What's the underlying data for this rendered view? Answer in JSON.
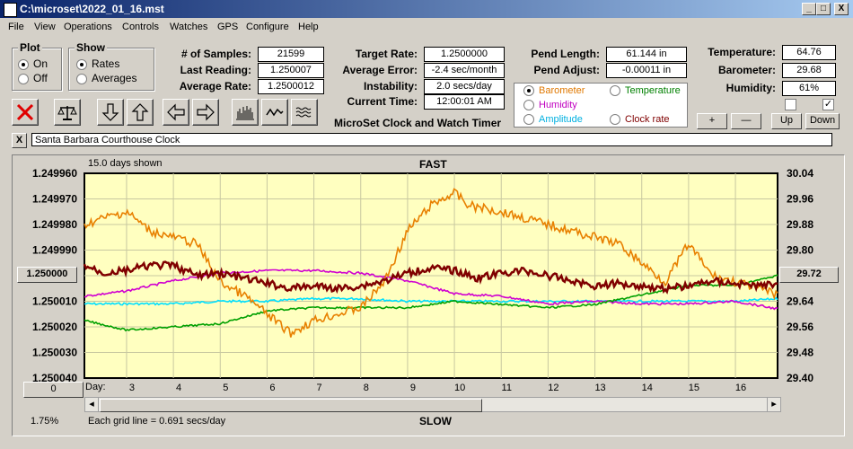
{
  "window": {
    "title": "C:\\microset\\2022_01_16.mst",
    "btn_min": "_",
    "btn_max": "□",
    "btn_close": "X"
  },
  "menu": [
    "File",
    "View",
    "Operations",
    "Controls",
    "Watches",
    "GPS",
    "Configure",
    "Help"
  ],
  "plot_group": {
    "title": "Plot",
    "on": "On",
    "off": "Off",
    "selected": "On"
  },
  "show_group": {
    "title": "Show",
    "rates": "Rates",
    "averages": "Averages",
    "selected": "Rates"
  },
  "stats": {
    "samples_label": "# of Samples:",
    "samples": "21599",
    "last_label": "Last Reading:",
    "last": "1.250007",
    "avg_label": "Average Rate:",
    "avg": "1.2500012"
  },
  "target": {
    "rate_label": "Target Rate:",
    "rate": "1.2500000",
    "err_label": "Average Error:",
    "err": "-2.4 sec/month",
    "inst_label": "Instability:",
    "inst": "2.0 secs/day",
    "time_label": "Current Time:",
    "time": "12:00:01 AM",
    "caption": "MicroSet Clock and Watch Timer"
  },
  "pend": {
    "len_label": "Pend Length:",
    "len": "61.144 in",
    "adj_label": "Pend Adjust:",
    "adj": "-0.00011 in"
  },
  "env": {
    "temp_label": "Temperature:",
    "temp": "64.76",
    "baro_label": "Barometer:",
    "baro": "29.68",
    "hum_label": "Humidity:",
    "hum": "61%",
    "chk1": false,
    "chk2": true
  },
  "aux": {
    "barometer": "Barometer",
    "temperature": "Temperature",
    "humidity": "Humidity",
    "amplitude": "Amplitude",
    "clockrate": "Clock rate",
    "selected": "Barometer"
  },
  "aux_colors": {
    "barometer": "#e07800",
    "temperature": "#008000",
    "humidity": "#c000c0",
    "amplitude": "#00c0e0",
    "clockrate": "#800000"
  },
  "adjust_buttons": {
    "plus": "+",
    "minus": "—",
    "up": "Up",
    "down": "Down"
  },
  "clock_name": "Santa Barbara Courthouse Clock",
  "close_x": "X",
  "chart_header": {
    "days_shown": "15.0 days shown",
    "fast": "FAST",
    "slow": "SLOW",
    "grid_note": "Each grid line = 0.691 secs/day",
    "percent": "1.75%",
    "day_label": "Day:",
    "center_left": "1.250000",
    "center_right": "29.72",
    "zero_btn": "0"
  },
  "chart_data": {
    "type": "line",
    "x_unit": "day",
    "xlim": [
      2.1,
      16.9
    ],
    "x_ticks": [
      3,
      4,
      5,
      6,
      7,
      8,
      9,
      10,
      11,
      12,
      13,
      14,
      15,
      16
    ],
    "y_left": {
      "ticks": [
        "1.249960",
        "1.249970",
        "1.249980",
        "1.249990",
        "1.250000",
        "1.250010",
        "1.250020",
        "1.250030",
        "1.250040"
      ],
      "lim_top": 1.24996,
      "lim_bottom": 1.25004
    },
    "y_right": {
      "ticks": [
        "30.04",
        "29.96",
        "29.88",
        "29.80",
        "29.72",
        "29.64",
        "29.56",
        "29.48",
        "29.40"
      ],
      "lim_top": 30.04,
      "lim_bottom": 29.4
    },
    "series": [
      {
        "axis": "left",
        "color": "#00e0ff",
        "x": [
          2.1,
          3,
          4,
          5,
          6,
          7,
          8,
          9,
          10,
          11,
          12,
          13,
          14,
          15,
          16,
          16.9
        ],
        "y": [
          1.250011,
          1.250011,
          1.250011,
          1.25001,
          1.25001,
          1.250009,
          1.250009,
          1.25001,
          1.25001,
          1.25001,
          1.25001,
          1.25001,
          1.25001,
          1.25001,
          1.25001,
          1.250009
        ]
      },
      {
        "axis": "left",
        "color": "#d000d0",
        "x": [
          2.1,
          3,
          4,
          5,
          6,
          7,
          8,
          9,
          10,
          11,
          12,
          13,
          14,
          15,
          16,
          16.9
        ],
        "y": [
          1.250008,
          1.250006,
          1.250002,
          1.249999,
          1.249998,
          1.249998,
          1.249999,
          1.250002,
          1.250007,
          1.250008,
          1.250011,
          1.25001,
          1.250011,
          1.250011,
          1.25001,
          1.250013
        ]
      },
      {
        "axis": "right",
        "color": "#00a000",
        "x": [
          2.1,
          3,
          4,
          5,
          6,
          7,
          8,
          9,
          10,
          11,
          12,
          13,
          14,
          15,
          16,
          16.9
        ],
        "y": [
          29.58,
          29.55,
          29.56,
          29.57,
          29.61,
          29.62,
          29.62,
          29.62,
          29.64,
          29.63,
          29.62,
          29.63,
          29.66,
          29.69,
          29.69,
          29.72
        ]
      },
      {
        "axis": "right",
        "color": "#e88000",
        "x": [
          2.1,
          2.5,
          3,
          3.5,
          4,
          4.5,
          5,
          5.5,
          6,
          6.5,
          7,
          7.5,
          8,
          8.5,
          9,
          9.5,
          10,
          10.3,
          11,
          11.5,
          12,
          12.5,
          13,
          13.5,
          14,
          14.5,
          15,
          15.5,
          16,
          16.5,
          16.9
        ],
        "y": [
          29.88,
          29.9,
          29.92,
          29.86,
          29.84,
          29.82,
          29.7,
          29.66,
          29.6,
          29.54,
          29.58,
          29.6,
          29.62,
          29.7,
          29.86,
          29.94,
          29.98,
          29.94,
          29.92,
          29.9,
          29.88,
          29.86,
          29.84,
          29.82,
          29.76,
          29.7,
          29.82,
          29.72,
          29.7,
          29.68,
          29.66
        ]
      },
      {
        "axis": "left",
        "color": "#800000",
        "x": [
          2.1,
          2.5,
          3,
          3.5,
          4,
          4.5,
          5,
          5.5,
          6,
          6.5,
          7,
          7.5,
          8,
          8.5,
          9,
          9.5,
          10,
          10.5,
          11,
          11.5,
          12,
          12.5,
          13,
          13.5,
          14,
          14.5,
          15,
          15.5,
          16,
          16.5,
          16.9
        ],
        "y": [
          1.249996,
          1.249999,
          1.249998,
          1.249996,
          1.249996,
          1.25,
          1.249999,
          1.250001,
          1.250003,
          1.250005,
          1.250004,
          1.250005,
          1.250004,
          1.250002,
          1.249999,
          1.249997,
          1.249998,
          1.250001,
          1.249999,
          1.249998,
          1.25,
          1.250002,
          1.250004,
          1.250003,
          1.250004,
          1.250005,
          1.250004,
          1.250002,
          1.250003,
          1.250004,
          1.250003
        ]
      }
    ]
  }
}
